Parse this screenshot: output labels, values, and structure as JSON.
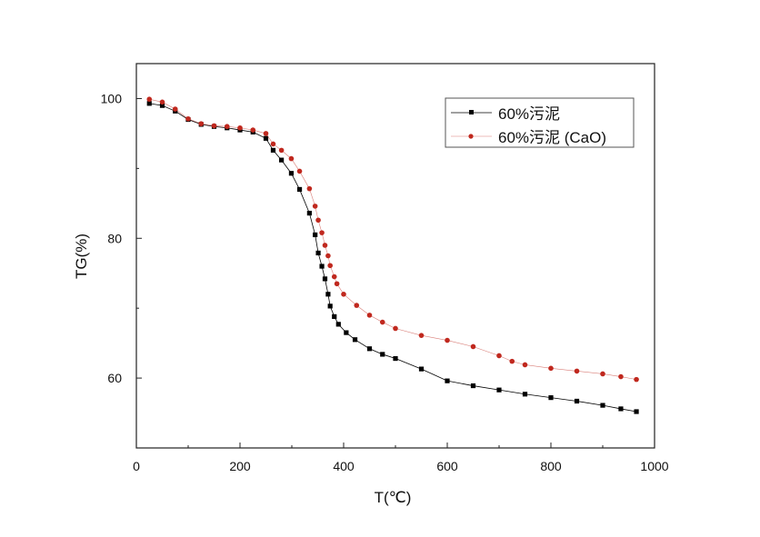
{
  "chart_data": {
    "type": "line",
    "xlabel": "T(℃)",
    "ylabel": "TG(%)",
    "xlim": [
      0,
      1000
    ],
    "ylim": [
      50,
      105
    ],
    "xticks": [
      0,
      200,
      400,
      600,
      800,
      1000
    ],
    "yticks": [
      60,
      80,
      100
    ],
    "legend_placement": "top-right",
    "grid": false,
    "series": [
      {
        "name": "60%污泥",
        "color": "#000000",
        "marker": "square",
        "x": [
          25,
          50,
          75,
          100,
          125,
          150,
          175,
          200,
          225,
          250,
          264,
          280,
          299,
          315,
          334,
          345,
          351,
          358,
          364,
          370,
          374,
          382,
          390,
          405,
          422,
          450,
          475,
          500,
          550,
          600,
          650,
          700,
          750,
          800,
          850,
          900,
          935,
          965
        ],
        "y": [
          99.3,
          99.0,
          98.2,
          97.0,
          96.3,
          96.0,
          95.8,
          95.5,
          95.2,
          94.3,
          92.6,
          91.2,
          89.3,
          87.0,
          83.6,
          80.5,
          77.9,
          76.0,
          74.2,
          72.0,
          70.3,
          68.8,
          67.7,
          66.5,
          65.5,
          64.2,
          63.4,
          62.8,
          61.3,
          59.6,
          58.9,
          58.3,
          57.7,
          57.2,
          56.7,
          56.1,
          55.6,
          55.2
        ]
      },
      {
        "name": "60%污泥 (CaO)",
        "color": "#c0281e",
        "marker": "circle",
        "x": [
          25,
          50,
          75,
          100,
          125,
          150,
          175,
          200,
          225,
          250,
          264,
          280,
          299,
          315,
          334,
          345,
          351,
          358,
          364,
          370,
          374,
          382,
          387,
          400,
          425,
          450,
          475,
          500,
          550,
          600,
          650,
          700,
          725,
          750,
          800,
          850,
          900,
          935,
          965
        ],
        "y": [
          99.9,
          99.5,
          98.5,
          97.1,
          96.4,
          96.1,
          96.0,
          95.8,
          95.5,
          95.0,
          93.5,
          92.6,
          91.4,
          89.6,
          87.1,
          84.6,
          82.6,
          80.8,
          79.0,
          77.5,
          76.1,
          74.5,
          73.5,
          72.0,
          70.4,
          69.0,
          68.0,
          67.1,
          66.1,
          65.4,
          64.5,
          63.2,
          62.4,
          61.9,
          61.4,
          61.0,
          60.6,
          60.2,
          59.8
        ]
      }
    ]
  }
}
